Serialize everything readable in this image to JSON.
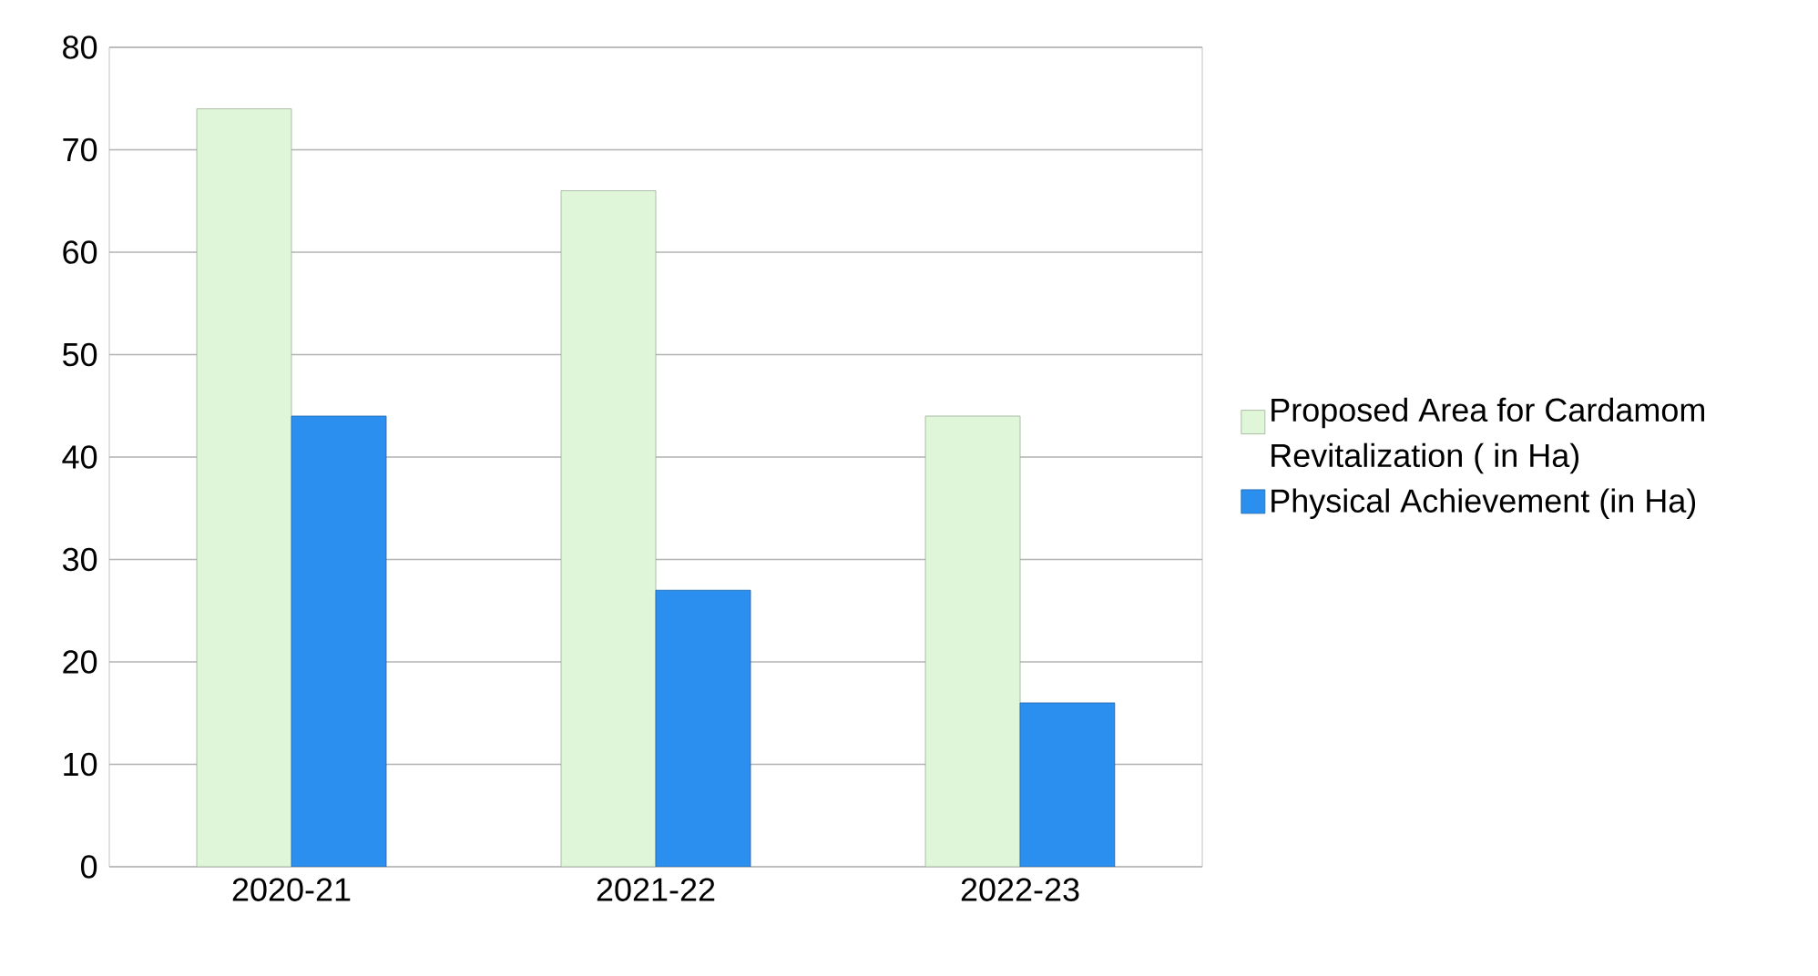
{
  "chart_data": {
    "type": "bar",
    "categories": [
      "2020-21",
      "2021-22",
      "2022-23"
    ],
    "series": [
      {
        "name": "Proposed Area for Cardamom Revitalization ( in Ha)",
        "color": "#dff7d8",
        "values": [
          74,
          66,
          44
        ]
      },
      {
        "name": "Physical Achievement (in Ha)",
        "color": "#2b8ff0",
        "values": [
          44,
          27,
          16
        ]
      }
    ],
    "ylim": [
      0,
      80
    ],
    "yticks": [
      0,
      10,
      20,
      30,
      40,
      50,
      60,
      70,
      80
    ],
    "grid": "y",
    "legend": "right"
  }
}
